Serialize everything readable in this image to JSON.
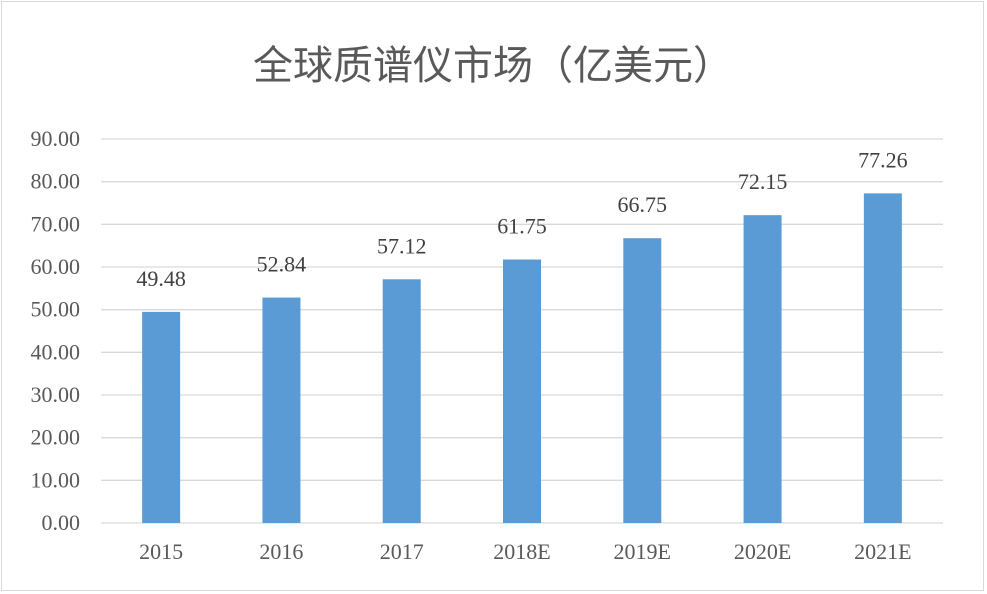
{
  "chart_data": {
    "type": "bar",
    "title": "全球质谱仪市场（亿美元）",
    "categories": [
      "2015",
      "2016",
      "2017",
      "2018E",
      "2019E",
      "2020E",
      "2021E"
    ],
    "values": [
      49.48,
      52.84,
      57.12,
      61.75,
      66.75,
      72.15,
      77.26
    ],
    "data_labels": [
      "49.48",
      "52.84",
      "57.12",
      "61.75",
      "66.75",
      "72.15",
      "77.26"
    ],
    "ylim": [
      0,
      90
    ],
    "yticks": [
      "0.00",
      "10.00",
      "20.00",
      "30.00",
      "40.00",
      "50.00",
      "60.00",
      "70.00",
      "80.00",
      "90.00"
    ],
    "xlabel": "",
    "ylabel": "",
    "grid": true,
    "legend": "none",
    "bar_color": "#5b9bd5"
  }
}
